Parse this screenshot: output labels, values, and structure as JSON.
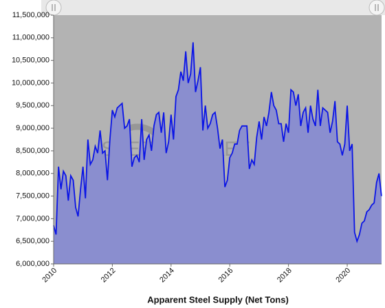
{
  "chart_data": {
    "type": "area",
    "title": "Apparent Steel Supply (Net Tons)",
    "watermark": "STEEL MARKET UPDATE",
    "x": [
      2010,
      2010.083,
      2010.167,
      2010.25,
      2010.333,
      2010.417,
      2010.5,
      2010.583,
      2010.667,
      2010.75,
      2010.833,
      2010.917,
      2011,
      2011.083,
      2011.167,
      2011.25,
      2011.333,
      2011.417,
      2011.5,
      2011.583,
      2011.667,
      2011.75,
      2011.833,
      2011.917,
      2012,
      2012.083,
      2012.167,
      2012.25,
      2012.333,
      2012.417,
      2012.5,
      2012.583,
      2012.667,
      2012.75,
      2012.833,
      2012.917,
      2013,
      2013.083,
      2013.167,
      2013.25,
      2013.333,
      2013.417,
      2013.5,
      2013.583,
      2013.667,
      2013.75,
      2013.833,
      2013.917,
      2014,
      2014.083,
      2014.167,
      2014.25,
      2014.333,
      2014.417,
      2014.5,
      2014.583,
      2014.667,
      2014.75,
      2014.833,
      2014.917,
      2015,
      2015.083,
      2015.167,
      2015.25,
      2015.333,
      2015.417,
      2015.5,
      2015.583,
      2015.667,
      2015.75,
      2015.833,
      2015.917,
      2016,
      2016.083,
      2016.167,
      2016.25,
      2016.333,
      2016.417,
      2016.5,
      2016.583,
      2016.667,
      2016.75,
      2016.833,
      2016.917,
      2017,
      2017.083,
      2017.167,
      2017.25,
      2017.333,
      2017.417,
      2017.5,
      2017.583,
      2017.667,
      2017.75,
      2017.833,
      2017.917,
      2018,
      2018.083,
      2018.167,
      2018.25,
      2018.333,
      2018.417,
      2018.5,
      2018.583,
      2018.667,
      2018.75,
      2018.833,
      2018.917,
      2019,
      2019.083,
      2019.167,
      2019.25,
      2019.333,
      2019.417,
      2019.5,
      2019.583,
      2019.667,
      2019.75,
      2019.833,
      2019.917,
      2020,
      2020.083,
      2020.167,
      2020.25,
      2020.333,
      2020.417,
      2020.5,
      2020.583,
      2020.667,
      2020.75,
      2020.833,
      2020.917,
      2021,
      2021.083,
      2021.167
    ],
    "series": [
      {
        "name": "Apparent Steel Supply",
        "color": "#0a14e6",
        "fill": "#8a8ecf",
        "values": [
          6850000,
          6650000,
          8150000,
          7650000,
          8050000,
          7950000,
          7400000,
          7950000,
          7850000,
          7250000,
          7050000,
          7650000,
          8150000,
          7450000,
          8750000,
          8200000,
          8300000,
          8600000,
          8450000,
          8950000,
          8450000,
          8500000,
          7850000,
          8750000,
          9400000,
          9250000,
          9450000,
          9500000,
          9550000,
          9000000,
          9050000,
          9200000,
          8150000,
          8350000,
          8400000,
          8250000,
          9200000,
          8300000,
          8750000,
          8850000,
          8500000,
          9050000,
          9300000,
          9350000,
          8900000,
          9350000,
          8450000,
          8700000,
          9300000,
          8750000,
          9700000,
          9850000,
          10250000,
          10050000,
          10700000,
          10000000,
          10200000,
          10900000,
          9800000,
          10050000,
          10350000,
          8950000,
          9500000,
          9000000,
          9100000,
          9300000,
          9350000,
          9000000,
          8550000,
          8750000,
          7700000,
          7850000,
          8350000,
          8450000,
          8650000,
          8650000,
          8950000,
          9050000,
          9050000,
          9050000,
          8100000,
          8300000,
          8200000,
          8800000,
          9150000,
          8750000,
          9250000,
          9050000,
          9350000,
          9800000,
          9500000,
          9400000,
          9100000,
          9100000,
          8700000,
          9100000,
          8900000,
          9850000,
          9800000,
          9500000,
          9750000,
          9050000,
          9350000,
          9450000,
          8900000,
          9500000,
          9200000,
          9050000,
          9850000,
          9050000,
          9450000,
          9400000,
          9350000,
          8900000,
          9150000,
          9600000,
          8700000,
          8650000,
          8400000,
          8650000,
          9500000,
          8500000,
          8650000,
          6700000,
          6500000,
          6650000,
          6900000,
          6950000,
          7150000,
          7200000,
          7300000,
          7350000,
          7800000,
          8000000,
          7500000
        ]
      }
    ],
    "xlim": [
      2010,
      2021.17
    ],
    "xticks": [
      2010,
      2012,
      2014,
      2016,
      2018,
      2020
    ],
    "ylim": [
      6000000,
      11500000
    ],
    "yticks": [
      {
        "value": 6000000,
        "label": "6,000,000"
      },
      {
        "value": 6500000,
        "label": "6,500,000"
      },
      {
        "value": 7000000,
        "label": "7,000,000"
      },
      {
        "value": 7500000,
        "label": "7,500,000"
      },
      {
        "value": 8000000,
        "label": "8,000,000"
      },
      {
        "value": 8500000,
        "label": "8,500,000"
      },
      {
        "value": 9000000,
        "label": "9,000,000"
      },
      {
        "value": 9500000,
        "label": "9,500,000"
      },
      {
        "value": 10000000,
        "label": "10,000,000"
      },
      {
        "value": 10500000,
        "label": "10,500,000"
      },
      {
        "value": 11000000,
        "label": "11,000,000"
      },
      {
        "value": 11500000,
        "label": "11,500,000"
      }
    ],
    "plot_background": "#b3b3b3"
  }
}
